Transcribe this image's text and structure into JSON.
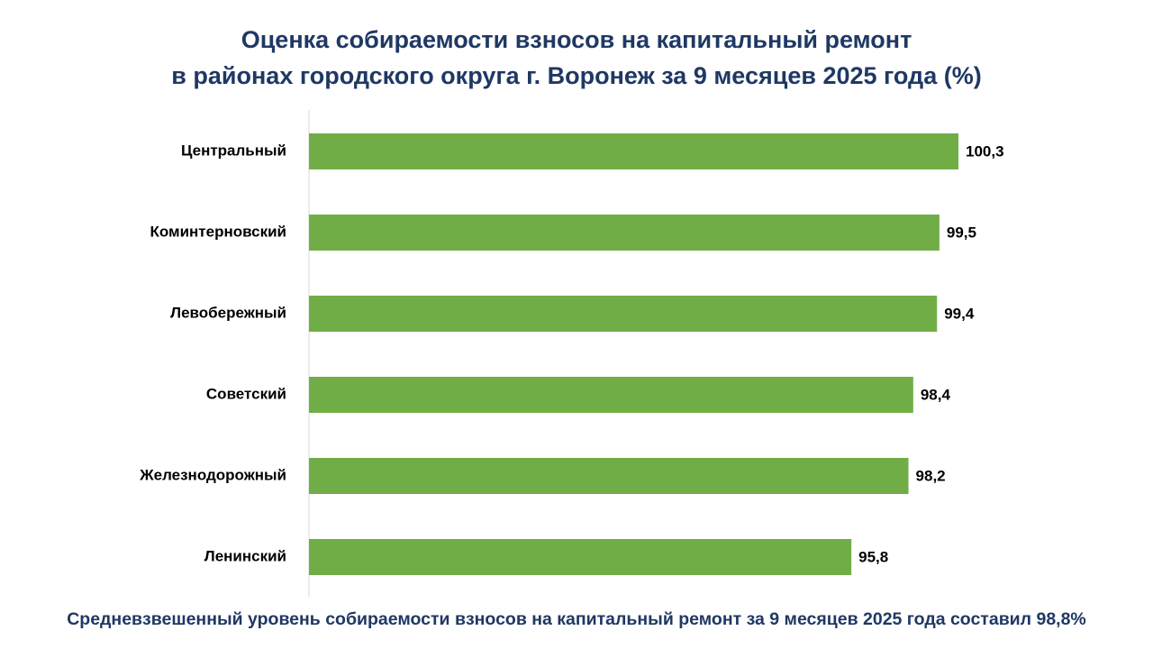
{
  "title": {
    "line1": "Оценка собираемости взносов на капитальный ремонт",
    "line2": "в районах городского округа г. Воронеж за 9 месяцев 2025 года (%)"
  },
  "footer": {
    "text": "Средневзвешенный уровень собираемости взносов на капитальный ремонт за 9 месяцев 2025 года составил 98,8%"
  },
  "colors": {
    "bar": "#70ad47",
    "title": "#1f3864",
    "axis": "#d9d9d9",
    "label": "#000000"
  },
  "chart_data": {
    "type": "bar",
    "orientation": "horizontal",
    "title": "Оценка собираемости взносов на капитальный ремонт в районах городского округа г. Воронеж за 9 месяцев 2025 года (%)",
    "categories": [
      "Центральный",
      "Коминтерновский",
      "Левобережный",
      "Советский",
      "Железнодорожный",
      "Ленинский"
    ],
    "values": [
      100.3,
      99.5,
      99.4,
      98.4,
      98.2,
      95.8
    ],
    "value_labels": [
      "100,3",
      "99,5",
      "99,4",
      "98,4",
      "98,2",
      "95,8"
    ],
    "xlabel": "",
    "ylabel": "",
    "xlim": [
      73,
      100.3
    ],
    "grid": false,
    "legend": "none"
  }
}
